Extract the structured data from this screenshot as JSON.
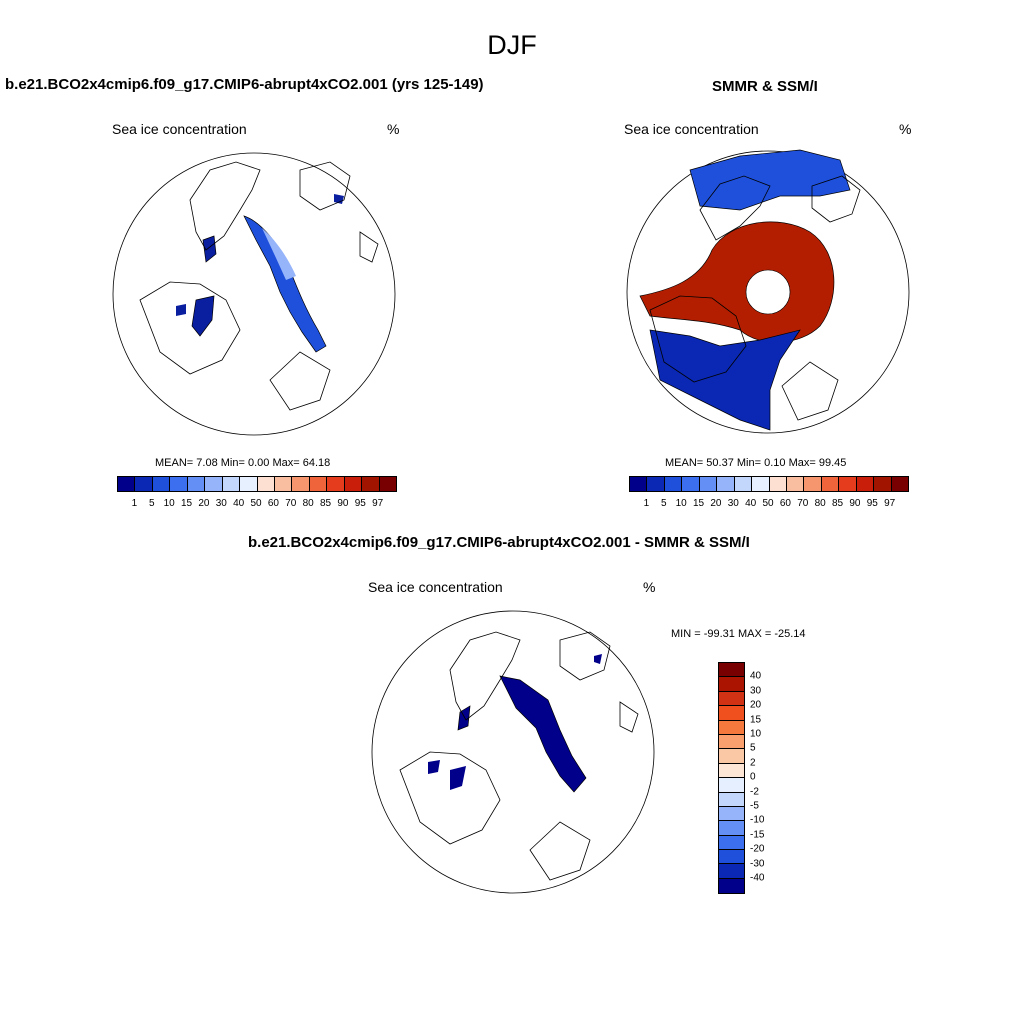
{
  "figure": {
    "title": "DJF",
    "subtitle_left": "b.e21.BCO2x4cmip6.f09_g17.CMIP6-abrupt4xCO2.001 (yrs 125-149)",
    "subtitle_right": "SMMR & SSM/I",
    "subtitle_diff": "b.e21.BCO2x4cmip6.f09_g17.CMIP6-abrupt4xCO2.001 - SMMR & SSM/I"
  },
  "panel_model": {
    "field": "Sea ice concentration",
    "units": "%",
    "mean_label": "MEAN=",
    "mean": "7.08",
    "min_label": "Min=",
    "min": "0.00",
    "max_label": "Max=",
    "max": "64.18"
  },
  "panel_obs": {
    "field": "Sea ice concentration",
    "units": "%",
    "mean_label": "MEAN=",
    "mean": "50.37",
    "min_label": "Min=",
    "min": "0.10",
    "max_label": "Max=",
    "max": "99.45"
  },
  "panel_diff": {
    "field": "Sea ice concentration",
    "units": "%",
    "minmax": "MIN = -99.31 MAX = -25.14"
  },
  "colorbar_abs": {
    "ticks": [
      "1",
      "5",
      "10",
      "15",
      "20",
      "30",
      "40",
      "50",
      "60",
      "70",
      "80",
      "85",
      "90",
      "95",
      "97"
    ],
    "colors": [
      "#00008b",
      "#0a28b4",
      "#1e50dc",
      "#3c6ef0",
      "#6490f5",
      "#96b4fa",
      "#c3d7fc",
      "#e6f0ff",
      "#fde0d2",
      "#f9bea0",
      "#f5966e",
      "#f0643c",
      "#e63c1e",
      "#c81e0a",
      "#a01400",
      "#780000"
    ]
  },
  "colorbar_diff": {
    "ticks": [
      "40",
      "30",
      "20",
      "15",
      "10",
      "5",
      "2",
      "0",
      "-2",
      "-5",
      "-10",
      "-15",
      "-20",
      "-30",
      "-40"
    ],
    "colors": [
      "#780000",
      "#aa1400",
      "#d23214",
      "#f0501e",
      "#f5783c",
      "#f9a06e",
      "#fbc8a5",
      "#fde6d6",
      "#e6efff",
      "#c3d7fc",
      "#96b4fa",
      "#6490f5",
      "#3c6ef0",
      "#1e50dc",
      "#0a28b4",
      "#00008b"
    ]
  },
  "map_colors": {
    "land_line": "#000000",
    "ice_low": "#0a1ea0",
    "ice_high": "#b41e00",
    "diff_neg": "#00008b"
  }
}
